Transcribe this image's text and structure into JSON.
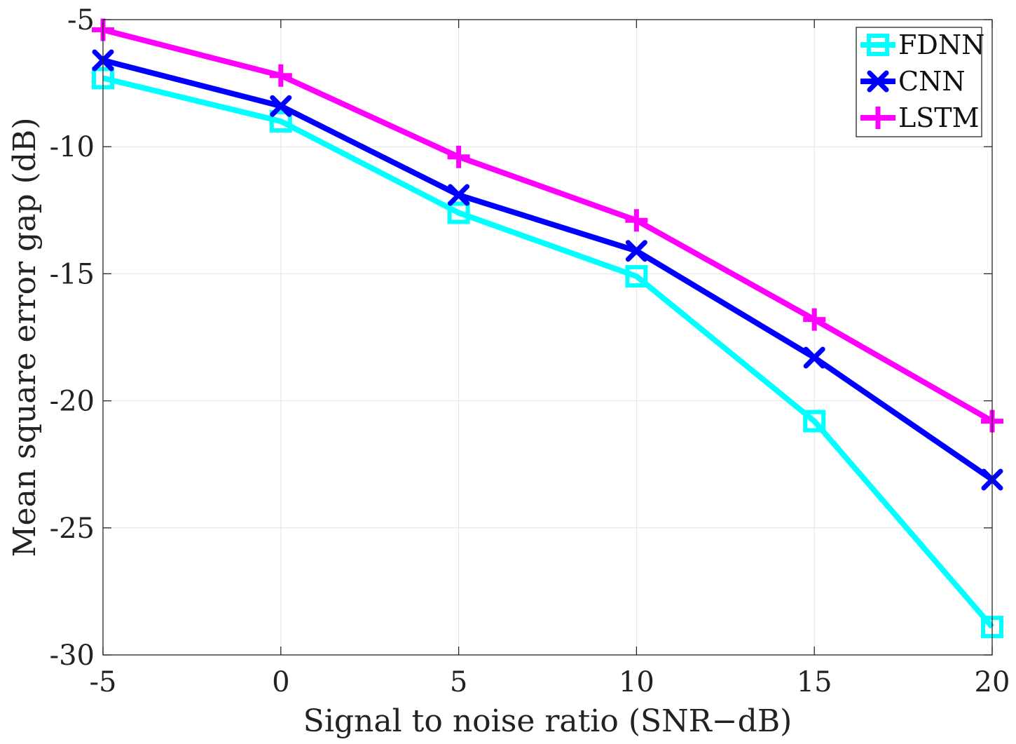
{
  "chart_data": {
    "type": "line",
    "title": "",
    "xlabel": "Signal to noise ratio (SNR−dB)",
    "ylabel": "Mean square error gap (dB)",
    "xlim": [
      -5,
      20
    ],
    "ylim": [
      -30,
      -5
    ],
    "xticks": [
      -5,
      0,
      5,
      10,
      15,
      20
    ],
    "yticks": [
      -5,
      -10,
      -15,
      -20,
      -25,
      -30
    ],
    "xtick_labels": [
      "-5",
      "0",
      "5",
      "10",
      "15",
      "20"
    ],
    "ytick_labels": [
      "-5",
      "-10",
      "-15",
      "-20",
      "-25",
      "-30"
    ],
    "grid": true,
    "legend_position": "top-right",
    "x": [
      -5,
      0,
      5,
      10,
      15,
      20
    ],
    "series": [
      {
        "name": "FDNN",
        "color": "#00ffff",
        "marker": "square",
        "values": [
          -7.3,
          -9.0,
          -12.6,
          -15.1,
          -20.8,
          -28.9
        ]
      },
      {
        "name": "CNN",
        "color": "#0000ff",
        "marker": "x",
        "values": [
          -6.6,
          -8.4,
          -11.9,
          -14.1,
          -18.3,
          -23.1
        ]
      },
      {
        "name": "LSTM",
        "color": "#ff00ff",
        "marker": "plus",
        "values": [
          -5.4,
          -7.2,
          -10.4,
          -12.9,
          -16.8,
          -20.8
        ]
      }
    ]
  }
}
